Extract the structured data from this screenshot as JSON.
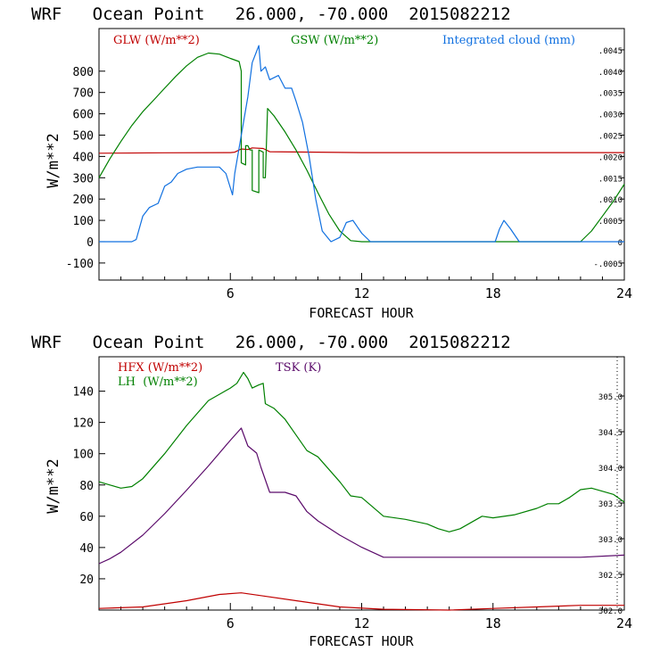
{
  "chart_data": [
    {
      "type": "line",
      "title": "WRF   Ocean Point   26.000, -70.000  2015082212",
      "xlabel": "FORECAST HOUR",
      "ylabel": "W/m**2",
      "xlim": [
        0,
        24
      ],
      "ylim": [
        -180,
        1000
      ],
      "y2lim": [
        -0.0009,
        0.005
      ],
      "x_ticks": [
        6,
        12,
        18,
        24
      ],
      "x_tick_labels": [
        "6",
        "12",
        "18",
        "24"
      ],
      "y_ticks": [
        -100,
        0,
        100,
        200,
        300,
        400,
        500,
        600,
        700,
        800
      ],
      "y_tick_labels": [
        "-100",
        "0",
        "100",
        "200",
        "300",
        "400",
        "500",
        "600",
        "700",
        "800"
      ],
      "y2_ticks": [
        -0.0005,
        0,
        0.0005,
        0.001,
        0.0015,
        0.002,
        0.0025,
        0.003,
        0.0035,
        0.004,
        0.0045
      ],
      "y2_tick_labels": [
        "-.0005",
        "0",
        ".0005",
        ".0010",
        ".0015",
        ".0020",
        ".0025",
        ".0030",
        ".0035",
        ".0040",
        ".0045"
      ],
      "series": [
        {
          "name": "GLW (W/m**2)",
          "color": "#c00000",
          "axis": "left",
          "points": [
            [
              0,
              415
            ],
            [
              3,
              417
            ],
            [
              6,
              418
            ],
            [
              6.2,
              420
            ],
            [
              6.5,
              435
            ],
            [
              6.8,
              432
            ],
            [
              7,
              440
            ],
            [
              7.5,
              437
            ],
            [
              7.8,
              422
            ],
            [
              12,
              418
            ],
            [
              18,
              418
            ],
            [
              24,
              418
            ]
          ]
        },
        {
          "name": "GSW (W/m**2)",
          "color": "#008000",
          "axis": "left",
          "points": [
            [
              0,
              300
            ],
            [
              0.5,
              390
            ],
            [
              1,
              470
            ],
            [
              1.5,
              545
            ],
            [
              2,
              610
            ],
            [
              2.5,
              665
            ],
            [
              3,
              720
            ],
            [
              3.5,
              775
            ],
            [
              4,
              825
            ],
            [
              4.5,
              865
            ],
            [
              5,
              885
            ],
            [
              5.5,
              880
            ],
            [
              6,
              860
            ],
            [
              6.4,
              845
            ],
            [
              6.5,
              800
            ],
            [
              6.5,
              370
            ],
            [
              6.7,
              360
            ],
            [
              6.7,
              450
            ],
            [
              6.8,
              450
            ],
            [
              6.9,
              430
            ],
            [
              7,
              430
            ],
            [
              7,
              240
            ],
            [
              7.3,
              230
            ],
            [
              7.3,
              430
            ],
            [
              7.5,
              420
            ],
            [
              7.5,
              300
            ],
            [
              7.6,
              300
            ],
            [
              7.7,
              625
            ],
            [
              8,
              590
            ],
            [
              8.5,
              515
            ],
            [
              9,
              430
            ],
            [
              9.5,
              335
            ],
            [
              10,
              230
            ],
            [
              10.5,
              130
            ],
            [
              11,
              50
            ],
            [
              11.5,
              5
            ],
            [
              12,
              0
            ],
            [
              22,
              0
            ],
            [
              22.5,
              50
            ],
            [
              23,
              120
            ],
            [
              23.5,
              190
            ],
            [
              24,
              270
            ]
          ]
        },
        {
          "name": "Integrated cloud (mm)",
          "color": "#1070e0",
          "axis": "right",
          "points": [
            [
              0,
              0
            ],
            [
              1.5,
              0
            ],
            [
              1.7,
              5e-05
            ],
            [
              2,
              0.0006
            ],
            [
              2.3,
              0.0008
            ],
            [
              2.7,
              0.0009
            ],
            [
              3,
              0.0013
            ],
            [
              3.3,
              0.0014
            ],
            [
              3.6,
              0.0016
            ],
            [
              4,
              0.0017
            ],
            [
              4.5,
              0.00175
            ],
            [
              5.5,
              0.00175
            ],
            [
              5.8,
              0.0016
            ],
            [
              6.1,
              0.0011
            ],
            [
              6.2,
              0.0016
            ],
            [
              6.4,
              0.0022
            ],
            [
              6.6,
              0.0028
            ],
            [
              6.8,
              0.0034
            ],
            [
              7,
              0.0042
            ],
            [
              7.3,
              0.0046
            ],
            [
              7.4,
              0.004
            ],
            [
              7.6,
              0.0041
            ],
            [
              7.8,
              0.0038
            ],
            [
              8.2,
              0.0039
            ],
            [
              8.5,
              0.0036
            ],
            [
              8.8,
              0.0036
            ],
            [
              9,
              0.0033
            ],
            [
              9.3,
              0.0028
            ],
            [
              9.6,
              0.002
            ],
            [
              9.9,
              0.001
            ],
            [
              10.2,
              0.00025
            ],
            [
              10.6,
              0
            ],
            [
              11,
              0.0001
            ],
            [
              11.3,
              0.00045
            ],
            [
              11.6,
              0.0005
            ],
            [
              12,
              0.0002
            ],
            [
              12.4,
              0
            ],
            [
              18.1,
              0
            ],
            [
              18.3,
              0.0003
            ],
            [
              18.5,
              0.0005
            ],
            [
              18.8,
              0.0003
            ],
            [
              19.2,
              0
            ],
            [
              24,
              0
            ]
          ]
        }
      ]
    },
    {
      "type": "line",
      "title": "WRF   Ocean Point   26.000, -70.000  2015082212",
      "xlabel": "FORECAST HOUR",
      "ylabel": "W/m**2",
      "xlim": [
        0,
        24
      ],
      "ylim": [
        0,
        162
      ],
      "y2lim": [
        302.0,
        305.55
      ],
      "x_ticks": [
        6,
        12,
        18,
        24
      ],
      "x_tick_labels": [
        "6",
        "12",
        "18",
        "24"
      ],
      "y_ticks": [
        20,
        40,
        60,
        80,
        100,
        120,
        140
      ],
      "y_tick_labels": [
        "20",
        "40",
        "60",
        "80",
        "100",
        "120",
        "140"
      ],
      "y2_ticks": [
        302.0,
        302.5,
        303.0,
        303.5,
        304.0,
        304.5,
        305.0
      ],
      "y2_tick_labels": [
        "302.0",
        "302.5",
        "303.0",
        "303.5",
        "304.0",
        "304.5",
        "305.0"
      ],
      "series": [
        {
          "name": "HFX (W/m**2)",
          "color": "#c00000",
          "axis": "left",
          "points": [
            [
              0,
              1
            ],
            [
              2,
              2
            ],
            [
              4,
              6
            ],
            [
              5.5,
              10
            ],
            [
              6.5,
              11
            ],
            [
              7.5,
              9
            ],
            [
              9,
              6
            ],
            [
              11,
              2
            ],
            [
              13,
              0.5
            ],
            [
              16,
              0
            ],
            [
              18,
              1
            ],
            [
              20,
              2
            ],
            [
              22,
              3
            ],
            [
              24,
              3
            ]
          ]
        },
        {
          "name": "LH (W/m**2)",
          "color": "#008000",
          "axis": "left",
          "points": [
            [
              0,
              82
            ],
            [
              0.5,
              80
            ],
            [
              1,
              78
            ],
            [
              1.5,
              79
            ],
            [
              2,
              84
            ],
            [
              3,
              100
            ],
            [
              4,
              118
            ],
            [
              5,
              134
            ],
            [
              5.5,
              138
            ],
            [
              6,
              142
            ],
            [
              6.3,
              145
            ],
            [
              6.6,
              152
            ],
            [
              6.8,
              148
            ],
            [
              7,
              142
            ],
            [
              7.3,
              144
            ],
            [
              7.5,
              145
            ],
            [
              7.6,
              132
            ],
            [
              8,
              129
            ],
            [
              8.5,
              122
            ],
            [
              9,
              112
            ],
            [
              9.5,
              102
            ],
            [
              10,
              98
            ],
            [
              11,
              82
            ],
            [
              11.5,
              73
            ],
            [
              12,
              72
            ],
            [
              12.5,
              66
            ],
            [
              13,
              60
            ],
            [
              14,
              58
            ],
            [
              15,
              55
            ],
            [
              15.5,
              52
            ],
            [
              16,
              50
            ],
            [
              16.5,
              52
            ],
            [
              17,
              56
            ],
            [
              17.5,
              60
            ],
            [
              18,
              59
            ],
            [
              19,
              61
            ],
            [
              20,
              65
            ],
            [
              20.5,
              68
            ],
            [
              21,
              68
            ],
            [
              21.5,
              72
            ],
            [
              22,
              77
            ],
            [
              22.5,
              78
            ],
            [
              23,
              76
            ],
            [
              23.5,
              74
            ],
            [
              24,
              69
            ]
          ]
        },
        {
          "name": "TSK (K)",
          "color": "#5a0a6a",
          "axis": "right",
          "points": [
            [
              0,
              302.65
            ],
            [
              0.5,
              302.72
            ],
            [
              1,
              302.81
            ],
            [
              2,
              303.05
            ],
            [
              3,
              303.35
            ],
            [
              4,
              303.68
            ],
            [
              5,
              304.02
            ],
            [
              5.5,
              304.2
            ],
            [
              6,
              304.38
            ],
            [
              6.5,
              304.55
            ],
            [
              6.8,
              304.3
            ],
            [
              7.2,
              304.2
            ],
            [
              7.4,
              304.0
            ],
            [
              7.8,
              303.65
            ],
            [
              8.5,
              303.65
            ],
            [
              9,
              303.6
            ],
            [
              9.5,
              303.38
            ],
            [
              10,
              303.25
            ],
            [
              11,
              303.05
            ],
            [
              12,
              302.88
            ],
            [
              13,
              302.74
            ],
            [
              14,
              302.74
            ],
            [
              18,
              302.74
            ],
            [
              22,
              302.74
            ],
            [
              24,
              302.77
            ]
          ]
        }
      ]
    }
  ],
  "top_chart": {
    "legend": [
      "GLW (W/m**2)",
      "GSW (W/m**2)",
      "Integrated cloud (mm)"
    ]
  },
  "bottom_chart": {
    "legend": [
      "HFX (W/m**2)",
      "LH  (W/m**2)",
      "TSK (K)"
    ]
  },
  "colors": {
    "red": "#c00000",
    "green": "#008000",
    "blue": "#1070e0",
    "purple": "#5a0a6a"
  }
}
